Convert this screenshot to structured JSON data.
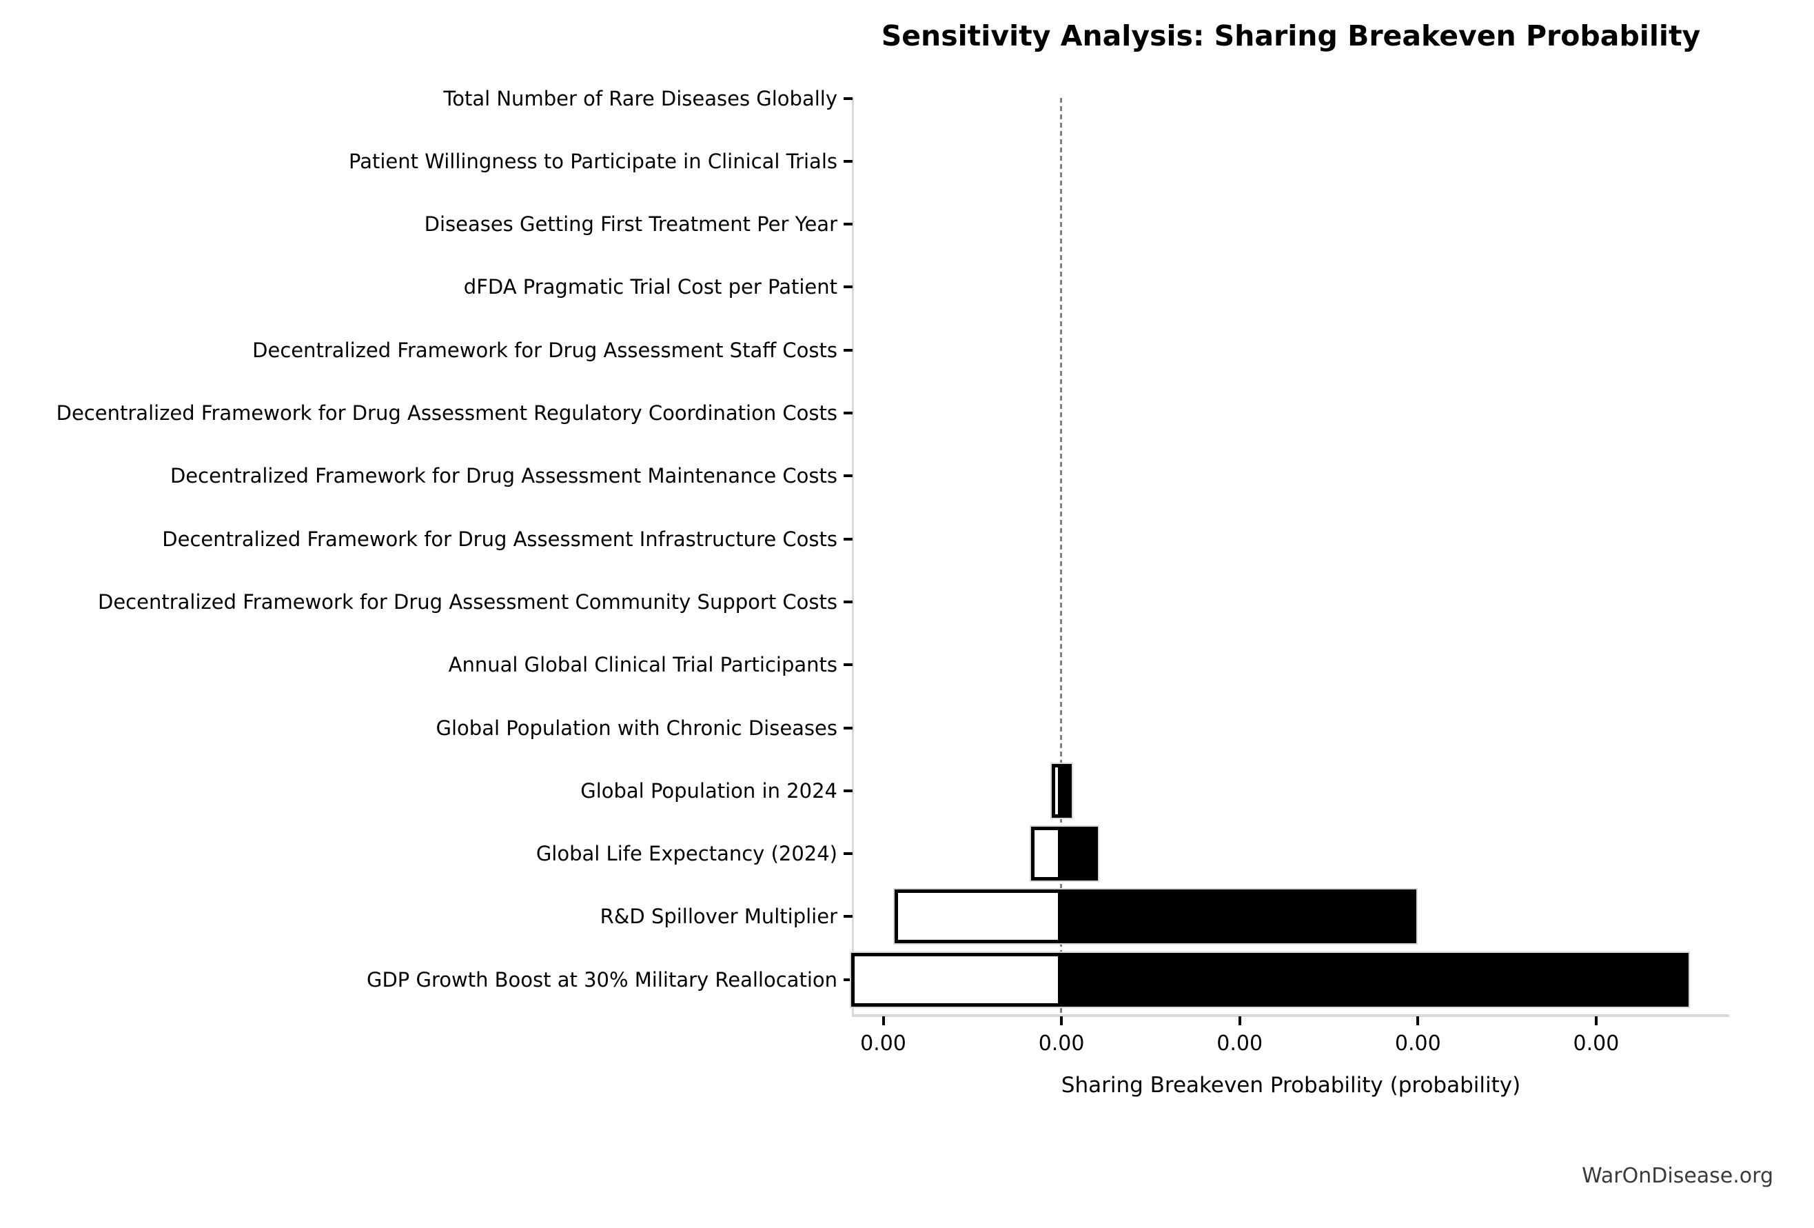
{
  "chart_data": {
    "type": "bar",
    "orientation": "horizontal",
    "variant": "tornado-sensitivity",
    "title": "Sensitivity Analysis: Sharing Breakeven Probability",
    "xlabel": "Sharing Breakeven Probability (probability)",
    "x_tick_labels": [
      "0.00",
      "0.00",
      "0.00",
      "0.00",
      "0.00"
    ],
    "baseline_tick_index": 1,
    "grid": false,
    "legend": null,
    "value_units": "x-axis tick intervals (axis labels all render as 0.00)",
    "rows": [
      {
        "label": "Total Number of Rare Diseases Globally",
        "low": 0,
        "high": 0
      },
      {
        "label": "Patient Willingness to Participate in Clinical Trials",
        "low": 0,
        "high": 0
      },
      {
        "label": "Diseases Getting First Treatment Per Year",
        "low": 0,
        "high": 0
      },
      {
        "label": "dFDA Pragmatic Trial Cost per Patient",
        "low": 0,
        "high": 0
      },
      {
        "label": "Decentralized Framework for Drug Assessment Staff Costs",
        "low": 0,
        "high": 0
      },
      {
        "label": "Decentralized Framework for Drug Assessment Regulatory Coordination Costs",
        "low": 0,
        "high": 0
      },
      {
        "label": "Decentralized Framework for Drug Assessment Maintenance Costs",
        "low": 0,
        "high": 0
      },
      {
        "label": "Decentralized Framework for Drug Assessment Infrastructure Costs",
        "low": 0,
        "high": 0
      },
      {
        "label": "Decentralized Framework for Drug Assessment Community Support Costs",
        "low": 0,
        "high": 0
      },
      {
        "label": "Annual Global Clinical Trial Participants",
        "low": 0,
        "high": 0
      },
      {
        "label": "Global Population with Chronic Diseases",
        "low": 0,
        "high": 0
      },
      {
        "label": "Global Population in 2024",
        "low": -0.054,
        "high": 0.058
      },
      {
        "label": "Global Life Expectancy (2024)",
        "low": -0.17,
        "high": 0.205
      },
      {
        "label": "R&D Spillover Multiplier",
        "low": -0.936,
        "high": 1.992
      },
      {
        "label": "GDP Growth Boost at 30% Military Reallocation",
        "low": -1.18,
        "high": 3.52
      }
    ],
    "colors": {
      "low_fill": "#ffffff",
      "low_edge": "#000000",
      "high_fill": "#000000",
      "bar_outline": "#d8d8d8",
      "baseline_line": "#7f7f7f",
      "spine": "#d9d9d9",
      "text": "#000000"
    }
  },
  "watermark": {
    "text": "WarOnDisease.org",
    "color": "#3a3a3a"
  }
}
